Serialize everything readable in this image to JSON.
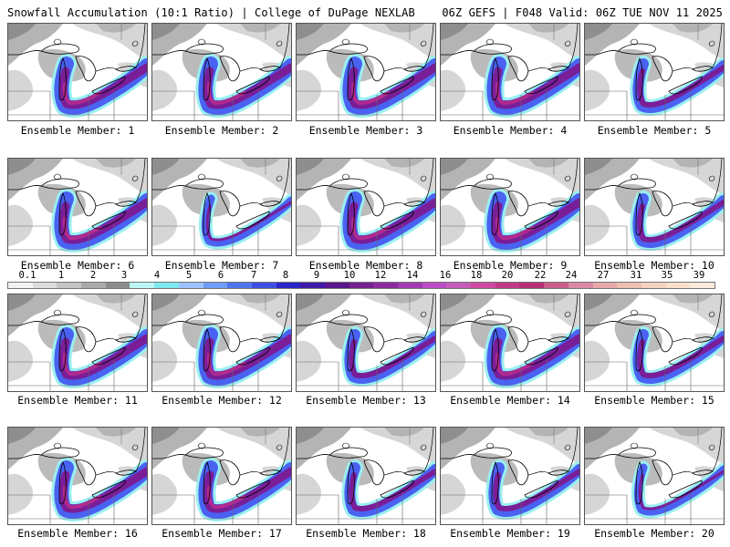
{
  "header": {
    "title_left": "Snowfall Accumulation (10:1 Ratio) | College of DuPage NEXLAB",
    "title_right": "06Z GEFS | F048 Valid: 06Z TUE NOV 11 2025"
  },
  "members": [
    {
      "label": "Ensemble Member: 1",
      "intensity": "heavy"
    },
    {
      "label": "Ensemble Member: 2",
      "intensity": "heavy"
    },
    {
      "label": "Ensemble Member: 3",
      "intensity": "heavy"
    },
    {
      "label": "Ensemble Member: 4",
      "intensity": "heavy"
    },
    {
      "label": "Ensemble Member: 5",
      "intensity": "moderate"
    },
    {
      "label": "Ensemble Member: 6",
      "intensity": "heavy"
    },
    {
      "label": "Ensemble Member: 7",
      "intensity": "light"
    },
    {
      "label": "Ensemble Member: 8",
      "intensity": "heavy"
    },
    {
      "label": "Ensemble Member: 9",
      "intensity": "heavy"
    },
    {
      "label": "Ensemble Member: 10",
      "intensity": "moderate"
    },
    {
      "label": "Ensemble Member: 11",
      "intensity": "heavy"
    },
    {
      "label": "Ensemble Member: 12",
      "intensity": "heavy"
    },
    {
      "label": "Ensemble Member: 13",
      "intensity": "moderate"
    },
    {
      "label": "Ensemble Member: 14",
      "intensity": "heavy"
    },
    {
      "label": "Ensemble Member: 15",
      "intensity": "moderate"
    },
    {
      "label": "Ensemble Member: 16",
      "intensity": "heavy"
    },
    {
      "label": "Ensemble Member: 17",
      "intensity": "heavy"
    },
    {
      "label": "Ensemble Member: 18",
      "intensity": "moderate"
    },
    {
      "label": "Ensemble Member: 19",
      "intensity": "moderate"
    },
    {
      "label": "Ensemble Member: 20",
      "intensity": "light"
    }
  ],
  "legend": {
    "ticks": [
      "0.1",
      "1",
      "2",
      "3",
      "4",
      "5",
      "6",
      "7",
      "8",
      "9",
      "10",
      "12",
      "14",
      "16",
      "18",
      "20",
      "22",
      "24",
      "27",
      "31",
      "35",
      "39"
    ],
    "colors": [
      "#f2f2f2",
      "#dcdcdc",
      "#c4c4c4",
      "#aaaaaa",
      "#8c8c8c",
      "#bdf5f5",
      "#7ee8ee",
      "#9cc3ff",
      "#6f9cf6",
      "#4f74f0",
      "#3f4fe3",
      "#2a25c8",
      "#3f1aa8",
      "#5a168c",
      "#74228f",
      "#8b2c9c",
      "#a23ab0",
      "#bb4cc4",
      "#c55cba",
      "#cc4aa0",
      "#c23a86",
      "#b52f72",
      "#c85f88",
      "#d98aa6",
      "#e6a8a8",
      "#eec0b0",
      "#f5d2bd",
      "#f9e0cc",
      "#fcebdc"
    ]
  },
  "colors": {
    "terrain_light": "#d6d6d6",
    "terrain_mid": "#b4b4b4",
    "terrain_dark": "#8e8e8e",
    "snow_cyan": "#9beff0",
    "snow_blue": "#4a62f2",
    "snow_purple": "#7a1e98",
    "snow_magenta": "#b12a8e"
  }
}
